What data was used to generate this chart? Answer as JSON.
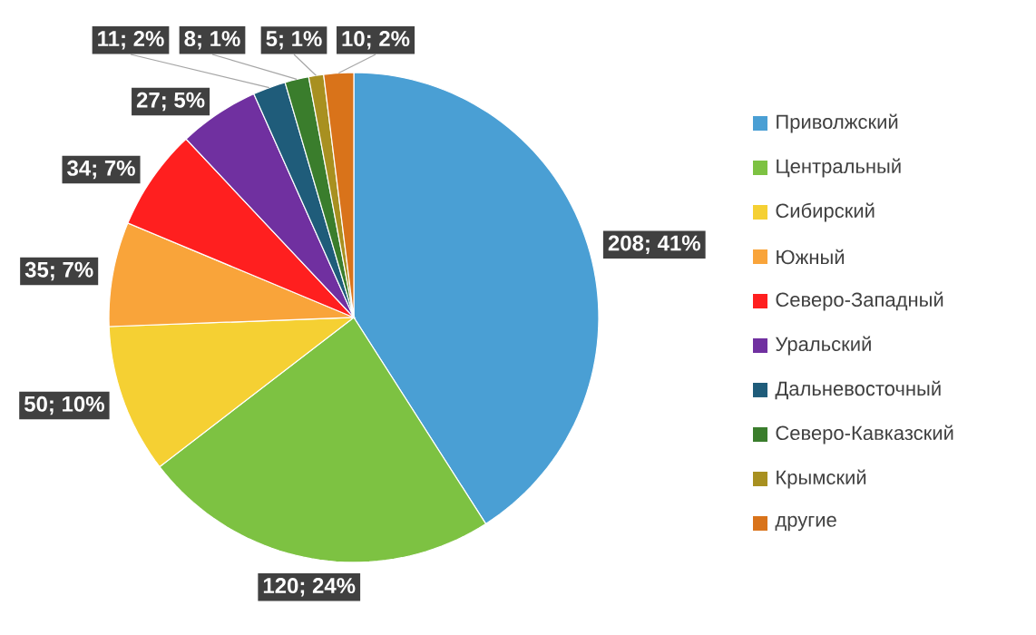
{
  "chart_data": {
    "type": "pie",
    "categories": [
      "Приволжский",
      "Центральный",
      "Сибирский",
      "Южный",
      "Северо-Западный",
      "Уральский",
      "Дальневосточный",
      "Северо-Кавказский",
      "Крымский",
      "другие"
    ],
    "values": [
      208,
      120,
      50,
      35,
      34,
      27,
      11,
      8,
      5,
      10
    ],
    "value_labels": [
      "208; 41%",
      "120; 24%",
      "50; 10%",
      "35; 7%",
      "34; 7%",
      "27; 5%",
      "11; 2%",
      "8; 1%",
      "5; 1%",
      "10; 2%"
    ],
    "colors": [
      "#4a9fd4",
      "#7dc242",
      "#f5d033",
      "#f9a43a",
      "#ff1f1f",
      "#7030a0",
      "#1f5c7a",
      "#3a7d2c",
      "#a89020",
      "#d9731a"
    ],
    "legend": "right"
  }
}
